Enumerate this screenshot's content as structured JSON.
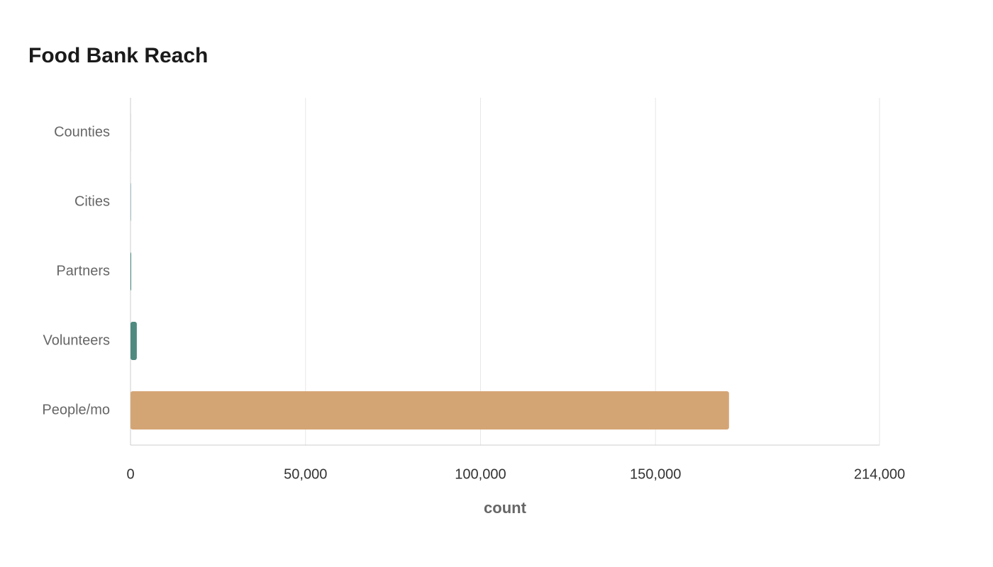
{
  "chart_data": {
    "type": "bar",
    "orientation": "horizontal",
    "title": "Food Bank Reach",
    "categories": [
      "Counties",
      "Cities",
      "Partners",
      "Volunteers",
      "People/mo"
    ],
    "values": [
      12,
      100,
      200,
      1800,
      171000
    ],
    "colors": [
      "#2f3b3f",
      "#4e8a80",
      "#4e8a80",
      "#4e8a80",
      "#d4a574"
    ],
    "xlabel": "count",
    "xlim": [
      0,
      214000
    ],
    "xticks": [
      0,
      {
        "value": 50000,
        "label": "50,000"
      },
      {
        "value": 100000,
        "label": "100,000"
      },
      {
        "value": 150000,
        "label": "150,000"
      },
      {
        "value": 214000,
        "label": "214,000"
      }
    ],
    "grid": true
  }
}
